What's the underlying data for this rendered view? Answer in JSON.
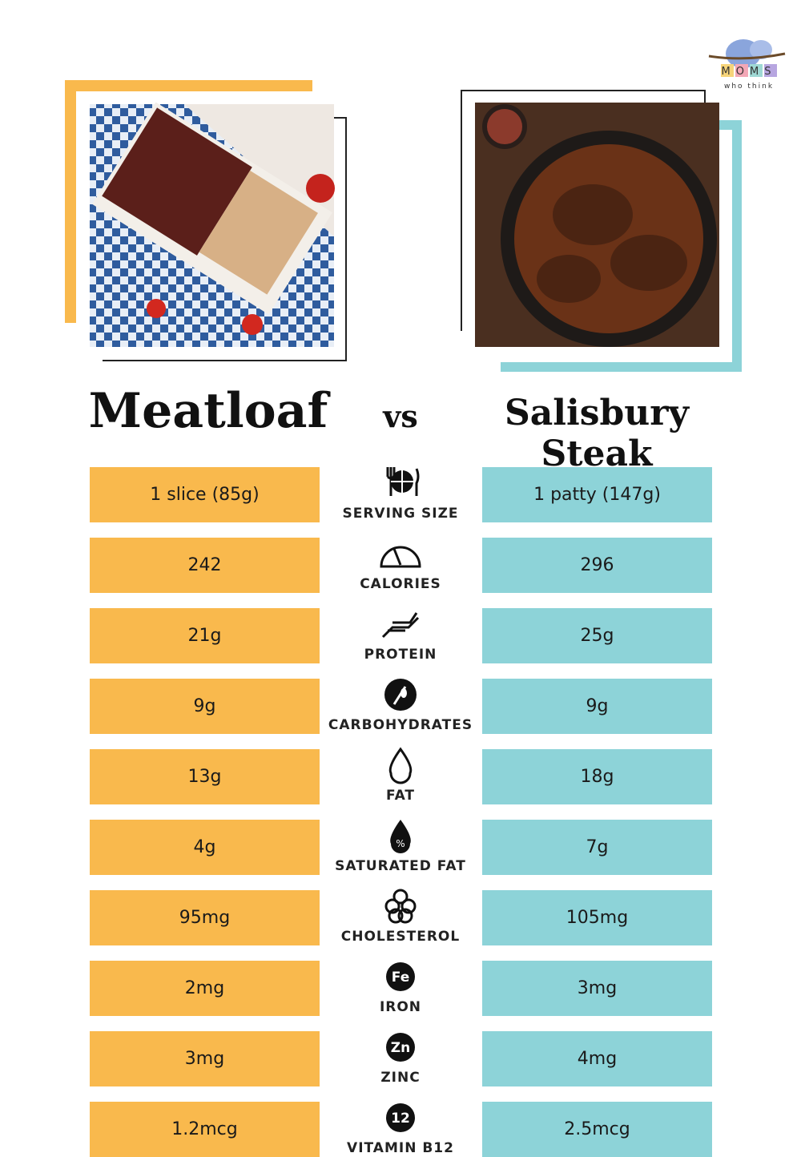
{
  "logo": {
    "text": "MOMS",
    "tagline": "who think"
  },
  "heading": {
    "left": "Meatloaf",
    "middle": "vs",
    "right": "Salisbury Steak"
  },
  "rows": [
    {
      "left": "1 slice (85g)",
      "label": "SERVING SIZE",
      "right": "1 patty (147g)"
    },
    {
      "left": "242",
      "label": "CALORIES",
      "right": "296"
    },
    {
      "left": "21g",
      "label": "PROTEIN",
      "right": "25g"
    },
    {
      "left": "9g",
      "label": "CARBOHYDRATES",
      "right": "9g"
    },
    {
      "left": "13g",
      "label": "FAT",
      "right": "18g"
    },
    {
      "left": "4g",
      "label": "SATURATED FAT",
      "right": "7g"
    },
    {
      "left": "95mg",
      "label": "CHOLESTEROL",
      "right": "105mg"
    },
    {
      "left": "2mg",
      "label": "IRON",
      "right": "3mg",
      "icon": "Fe"
    },
    {
      "left": "3mg",
      "label": "ZINC",
      "right": "4mg",
      "icon": "Zn"
    },
    {
      "left": "1.2mcg",
      "label": "VITAMIN B12",
      "right": "2.5mcg",
      "icon": "12"
    }
  ]
}
